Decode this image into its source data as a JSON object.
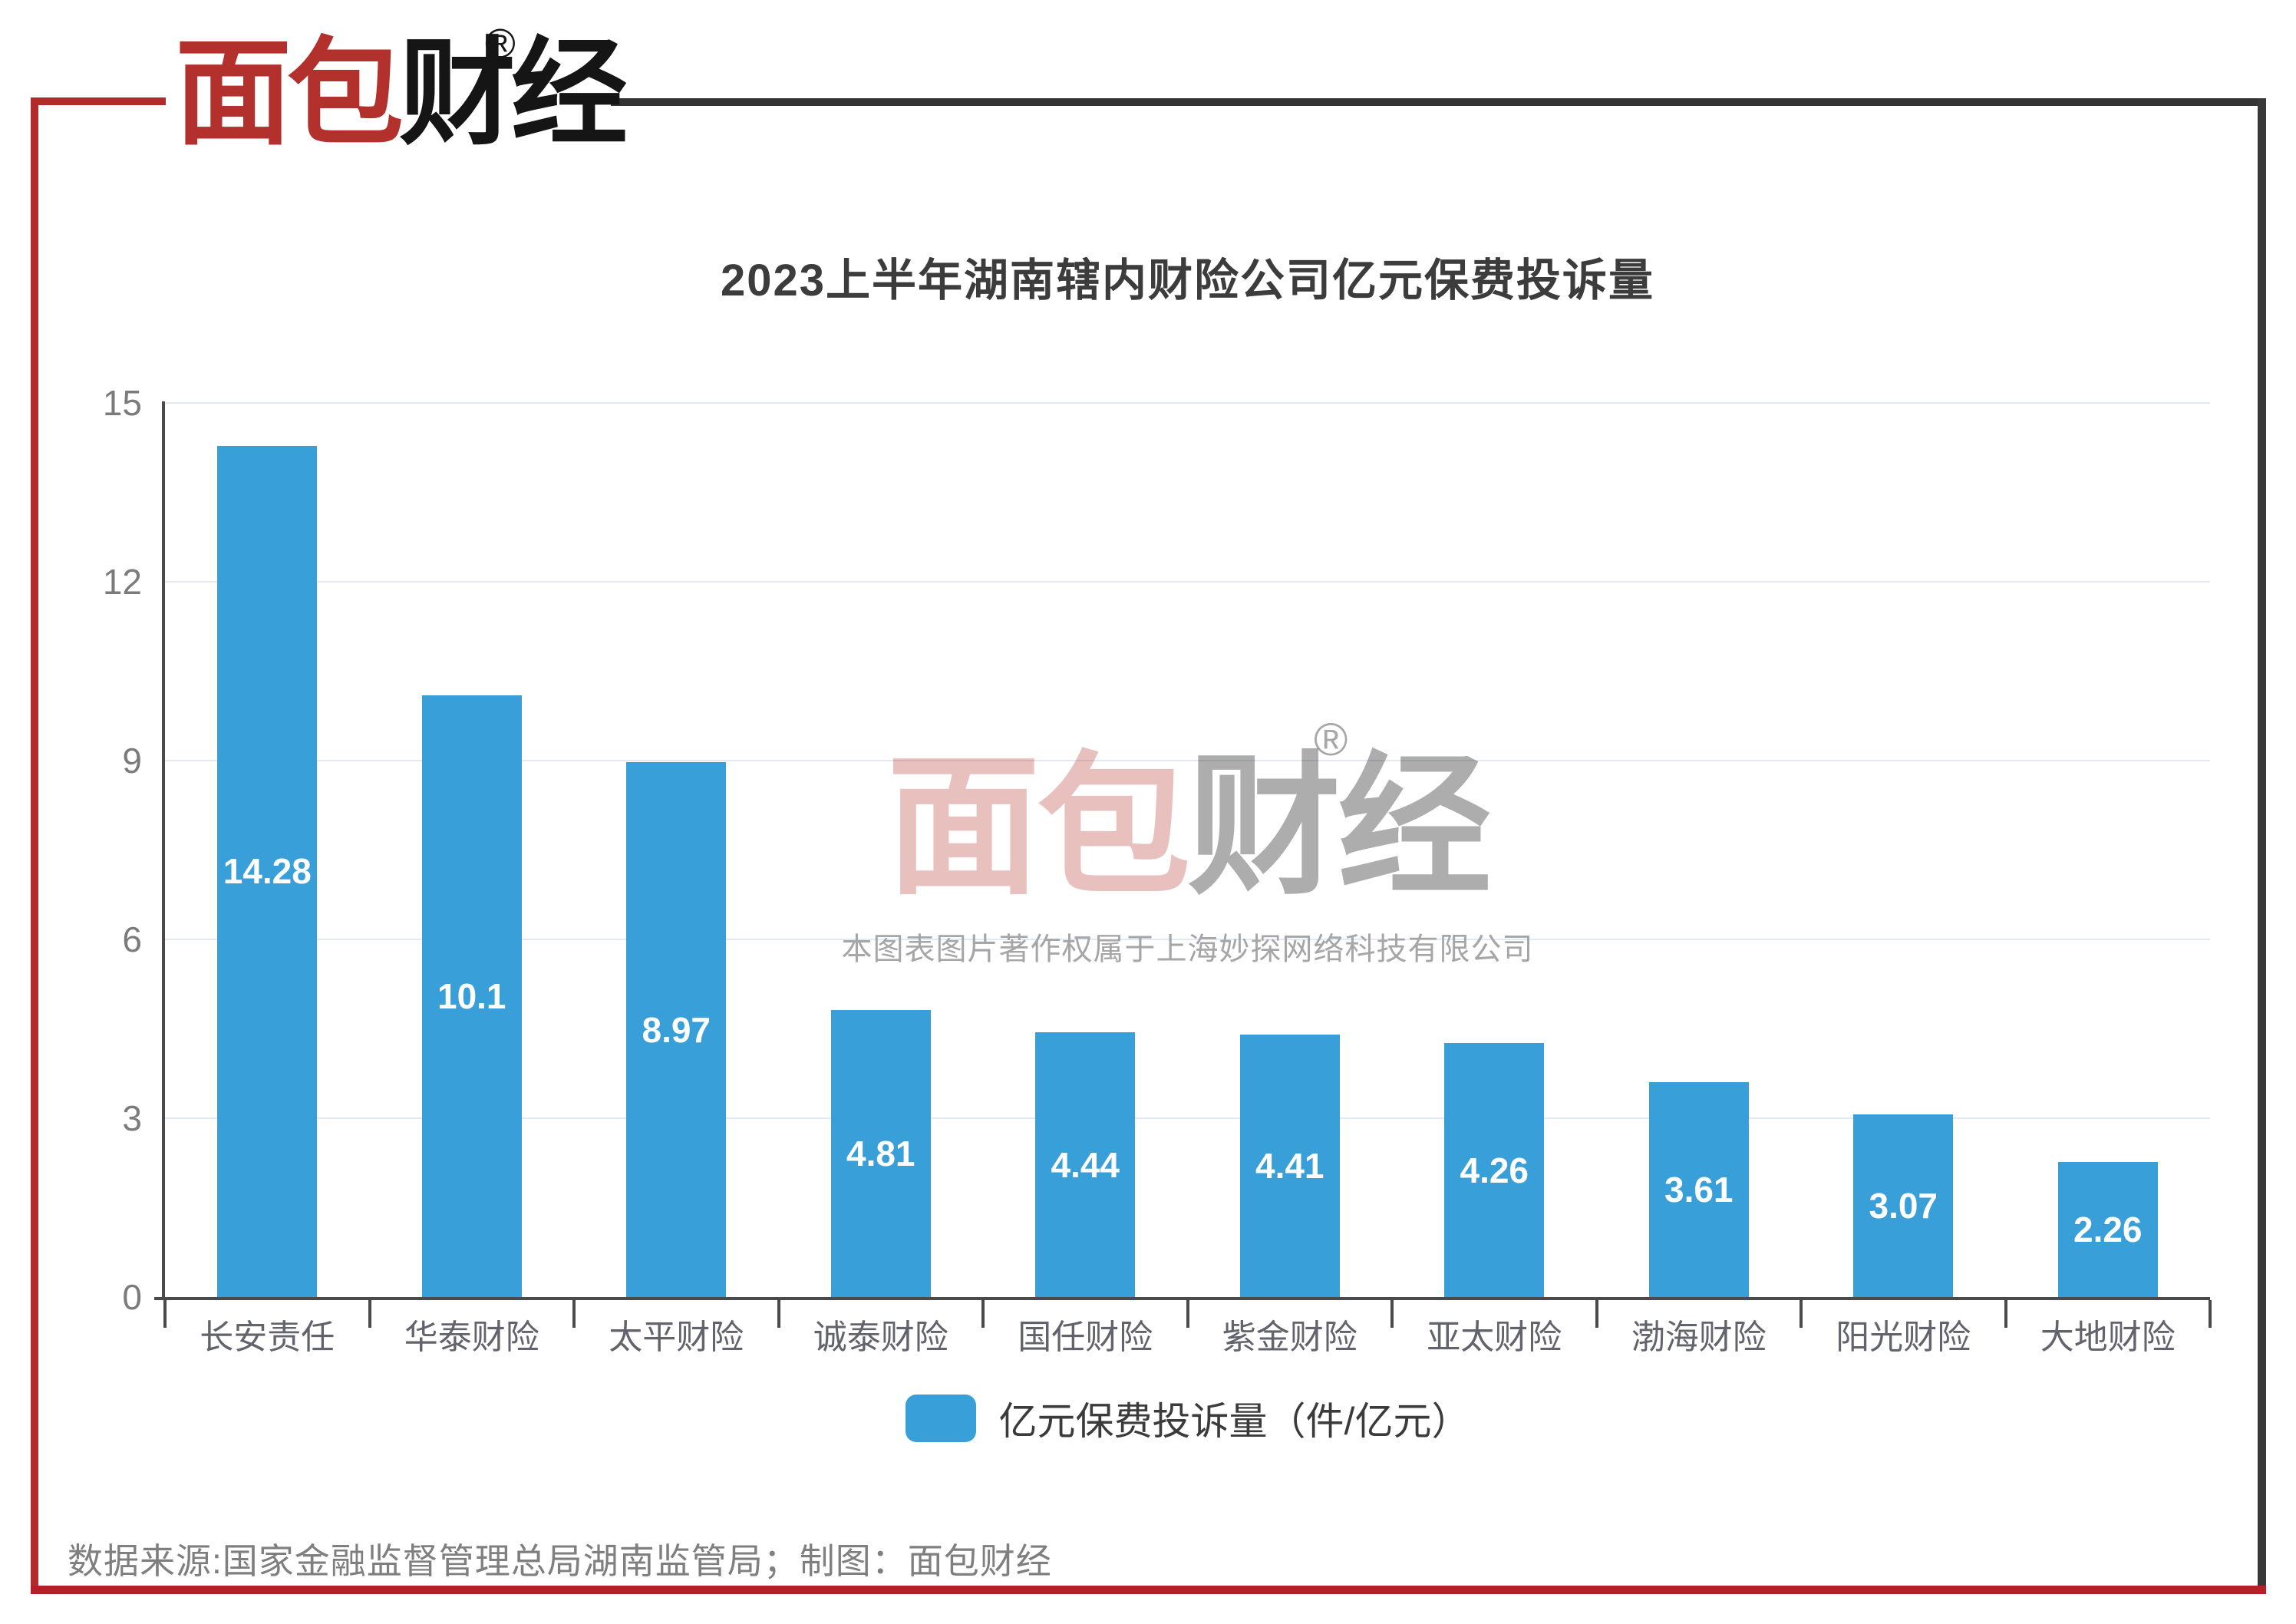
{
  "brand": {
    "logo_part1": "面包",
    "logo_part2": "财经",
    "registered_mark": "®"
  },
  "chart_data": {
    "type": "bar",
    "title": "2023上半年湖南辖内财险公司亿元保费投诉量",
    "categories": [
      "长安责任",
      "华泰财险",
      "太平财险",
      "诚泰财险",
      "国任财险",
      "紫金财险",
      "亚太财险",
      "渤海财险",
      "阳光财险",
      "大地财险"
    ],
    "values": [
      14.28,
      10.1,
      8.97,
      4.81,
      4.44,
      4.41,
      4.26,
      3.61,
      3.07,
      2.26
    ],
    "value_labels": [
      "14.28",
      "10.1",
      "8.97",
      "4.81",
      "4.44",
      "4.41",
      "4.26",
      "3.61",
      "3.07",
      "2.26"
    ],
    "xlabel": "",
    "ylabel": "",
    "ylim": [
      0,
      15
    ],
    "yticks": [
      0,
      3,
      6,
      9,
      12,
      15
    ],
    "grid": true,
    "legend": "亿元保费投诉量（件/亿元）",
    "legend_position": "bottom",
    "bar_color": "#389FD8",
    "value_label_color": "#ffffff"
  },
  "watermark": {
    "logo_part1": "面包",
    "logo_part2": "财经",
    "registered_mark": "®",
    "copyright": "本图表图片著作权属于上海妙探网络科技有限公司"
  },
  "footer": {
    "source": "数据来源:国家金融监督管理总局湖南监管局；制图：面包财经"
  },
  "colors": {
    "frame_red": "#B12B2B",
    "bottom_bar_red": "#B51F27",
    "frame_dark": "#333333",
    "bar_blue": "#389FD8",
    "gridline": "#e2e9f3",
    "axis": "#4a4a4a"
  }
}
